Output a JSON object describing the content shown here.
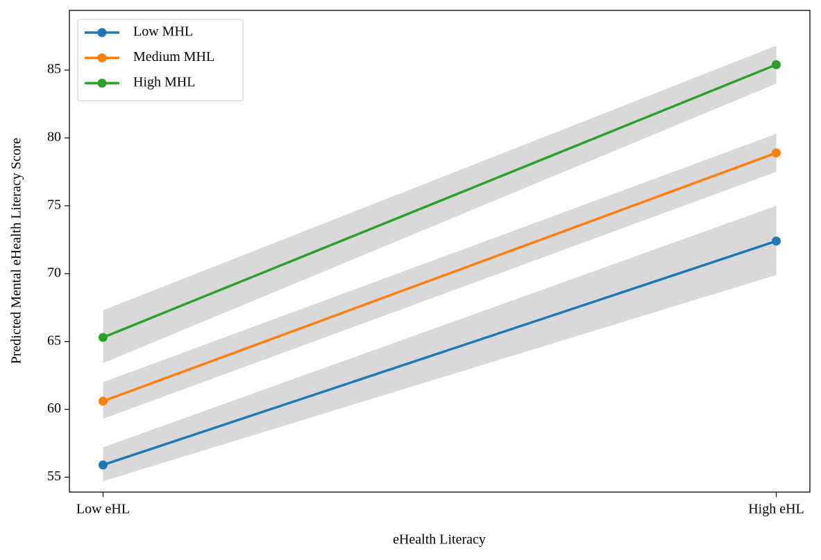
{
  "chart_data": {
    "type": "line",
    "xlabel": "eHealth Literacy",
    "ylabel": "Predicted Mental eHealth Literacy Score",
    "categories": [
      "Low eHL",
      "High eHL"
    ],
    "series": [
      {
        "name": "Low MHL",
        "color": "#1f77b4",
        "values": [
          55.9,
          72.4
        ],
        "lower": [
          54.7,
          69.9
        ],
        "upper": [
          57.2,
          75.0
        ]
      },
      {
        "name": "Medium MHL",
        "color": "#ff7f0e",
        "values": [
          60.6,
          78.9
        ],
        "lower": [
          59.3,
          77.5
        ],
        "upper": [
          62.0,
          80.3
        ]
      },
      {
        "name": "High MHL",
        "color": "#2ca02c",
        "values": [
          65.3,
          85.4
        ],
        "lower": [
          63.4,
          84.0
        ],
        "upper": [
          67.3,
          86.8
        ]
      }
    ],
    "band_color": "#d9d9d9",
    "ylim": [
      53.9,
      89.4
    ],
    "yticks": [
      55,
      60,
      65,
      70,
      75,
      80,
      85
    ],
    "grid": false,
    "legend": "upper left"
  }
}
